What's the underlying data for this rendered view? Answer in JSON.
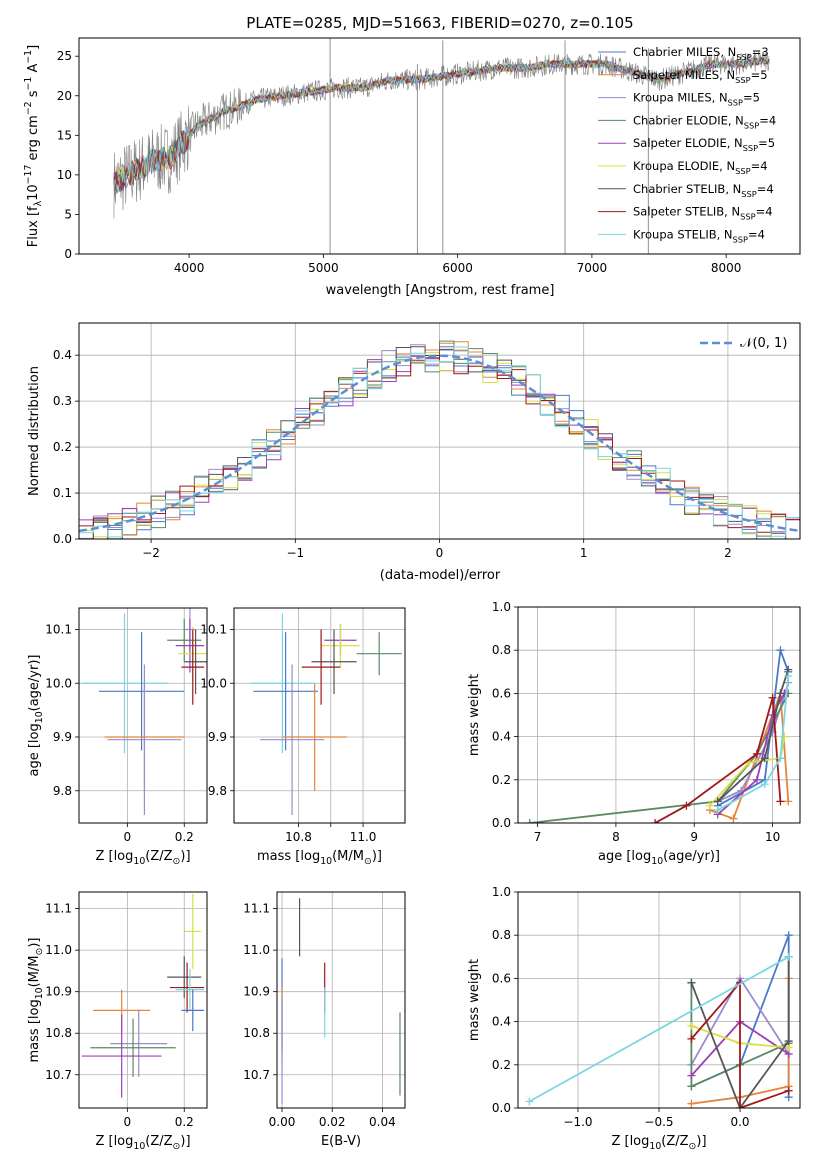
{
  "colors": {
    "series": [
      "#1f77b4",
      "#ff7f0e",
      "#2ca02c",
      "#d62728",
      "#9467bd",
      "#8c564b",
      "#e377c2",
      "#7f7f7f",
      "#bcbd22",
      "#17becf"
    ],
    "fit": [
      "#4a78c9",
      "#e5853a",
      "#9c8ad0",
      "#5a8a64",
      "#9a40b8",
      "#d6e040",
      "#555555",
      "#a01818",
      "#7ad6e0"
    ],
    "gaussian": "#5b8fd4",
    "spectrum": "#808080"
  },
  "chart_data": [
    {
      "type": "line",
      "title": "PLATE=0285, MJD=51663, FIBERID=0270, z=0.105",
      "xlabel": "wavelength [Angstrom, rest frame]",
      "ylabel": "Flux [f",
      "ylabel_sub": "λ",
      "ylabel_mid": "10",
      "ylabel_exp": "−17",
      "ylabel_tail": " erg cm",
      "ylabel_exp2": "−2",
      "ylabel_tail2": " s",
      "ylabel_exp3": "−1",
      "ylabel_tail3": " A",
      "ylabel_exp4": "−1",
      "ylabel_end": "]",
      "xlim": [
        3180,
        8550
      ],
      "ylim": [
        0,
        27.3
      ],
      "xticks": [
        4000,
        5000,
        6000,
        7000,
        8000
      ],
      "yticks": [
        0,
        5,
        10,
        15,
        20,
        25
      ],
      "legend_position": "top-right",
      "legend": [
        {
          "label": "Chabrier MILES, N",
          "sub": "SSP",
          "tail": "=3",
          "color_index": 0
        },
        {
          "label": "Salpeter MILES, N",
          "sub": "SSP",
          "tail": "=5",
          "color_index": 1
        },
        {
          "label": "Kroupa MILES, N",
          "sub": "SSP",
          "tail": "=5",
          "color_index": 8
        },
        {
          "label": "Chabrier ELODIE, N",
          "sub": "SSP",
          "tail": "=4",
          "color_index": 3
        },
        {
          "label": "Salpeter ELODIE, N",
          "sub": "SSP",
          "tail": "=5",
          "color_index": 4
        },
        {
          "label": "Kroupa ELODIE, N",
          "sub": "SSP",
          "tail": "=4",
          "color_index": 5
        },
        {
          "label": "Chabrier STELIB, N",
          "sub": "SSP",
          "tail": "=4",
          "color_index": 6
        },
        {
          "label": "Salpeter STELIB, N",
          "sub": "SSP",
          "tail": "=4",
          "color_index": 7
        },
        {
          "label": "Kroupa STELIB, N",
          "sub": "SSP",
          "tail": "=4",
          "color_index": 8
        }
      ],
      "spectrum_shape": {
        "x": [
          3450,
          3550,
          3650,
          3750,
          3850,
          3950,
          4050,
          4150,
          4250,
          4350,
          4500,
          4700,
          4900,
          5100,
          5300,
          5500,
          5700,
          5900,
          6100,
          6300,
          6500,
          6700,
          6900,
          7100,
          7300,
          7500,
          7700,
          7900,
          8100,
          8300
        ],
        "y": [
          9,
          10,
          11,
          12,
          12,
          14,
          16,
          17,
          18,
          18.5,
          19.5,
          20,
          20.5,
          21,
          21,
          22,
          22,
          22.5,
          23,
          23.5,
          23.5,
          24,
          24,
          24,
          23,
          22,
          23,
          24,
          24,
          24.5
        ]
      }
    },
    {
      "type": "line",
      "xlabel": "(data-model)/error",
      "ylabel": "Normed distribution",
      "xlim": [
        -2.5,
        2.5
      ],
      "ylim": [
        0,
        0.47
      ],
      "xticks": [
        -2,
        -1,
        0,
        1,
        2
      ],
      "yticks": [
        0.0,
        0.1,
        0.2,
        0.3,
        0.4
      ],
      "legend_position": "top-right",
      "legend": [
        {
          "label": "𝒩(0, 1)"
        }
      ],
      "bin_width": 0.1,
      "series_count": 9
    },
    {
      "type": "scatter",
      "xlabel": "Z [log",
      "xlabel_sub": "10",
      "xlabel_tail": "(Z/Z",
      "xlabel_sub2": "⊙",
      "xlabel_end": ")]",
      "ylabel": "age  [log",
      "ylabel_sub": "10",
      "ylabel_tail": "(age/yr)]",
      "xlim": [
        -0.17,
        0.28
      ],
      "ylim": [
        9.74,
        10.14
      ],
      "xticks": [
        0.0,
        0.2
      ],
      "yticks": [
        9.8,
        9.9,
        10.0,
        10.1
      ],
      "points": [
        {
          "x": 0.22,
          "y": 10.1,
          "xerr": 0.02,
          "yerr": 0.04
        },
        {
          "x": 0.2,
          "y": 10.08,
          "xerr": 0.06,
          "yerr": 0.04
        },
        {
          "x": 0.22,
          "y": 10.07,
          "xerr": 0.05,
          "yerr": 0.05
        },
        {
          "x": 0.23,
          "y": 10.055,
          "xerr": 0.05,
          "yerr": 0.05
        },
        {
          "x": 0.24,
          "y": 10.04,
          "xerr": 0.04,
          "yerr": 0.06
        },
        {
          "x": 0.23,
          "y": 10.03,
          "xerr": 0.04,
          "yerr": 0.07
        },
        {
          "x": -0.01,
          "y": 10.0,
          "xerr": 0.15,
          "yerr": 0.13
        },
        {
          "x": 0.05,
          "y": 9.985,
          "xerr": 0.15,
          "yerr": 0.11
        },
        {
          "x": 0.06,
          "y": 9.9,
          "xerr": 0.14,
          "yerr": 0.1
        },
        {
          "x": 0.06,
          "y": 9.895,
          "xerr": 0.13,
          "yerr": 0.14
        }
      ]
    },
    {
      "type": "scatter",
      "xlabel": "mass [log",
      "xlabel_sub": "10",
      "xlabel_tail": "(M/M",
      "xlabel_sub2": "⊙",
      "xlabel_end": ")]",
      "xlim": [
        10.6,
        11.13
      ],
      "ylim": [
        9.74,
        10.14
      ],
      "xticks": [
        10.8,
        10.9,
        11.0
      ],
      "xticklabels": [
        "10.8",
        "",
        "11.0"
      ],
      "yticks": [
        9.8,
        9.9,
        10.0,
        10.1
      ],
      "points": [
        {
          "x": 11.05,
          "y": 10.055,
          "xerr": 0.07,
          "yerr": 0.04
        },
        {
          "x": 10.93,
          "y": 10.08,
          "xerr": 0.05,
          "yerr": 0.03
        },
        {
          "x": 10.93,
          "y": 10.07,
          "xerr": 0.06,
          "yerr": 0.04
        },
        {
          "x": 10.91,
          "y": 10.04,
          "xerr": 0.07,
          "yerr": 0.06
        },
        {
          "x": 10.87,
          "y": 10.03,
          "xerr": 0.06,
          "yerr": 0.07
        },
        {
          "x": 10.75,
          "y": 10.0,
          "xerr": 0.1,
          "yerr": 0.13
        },
        {
          "x": 10.76,
          "y": 9.985,
          "xerr": 0.1,
          "yerr": 0.11
        },
        {
          "x": 10.85,
          "y": 9.9,
          "xerr": 0.1,
          "yerr": 0.1
        },
        {
          "x": 10.78,
          "y": 9.895,
          "xerr": 0.1,
          "yerr": 0.14
        }
      ]
    },
    {
      "type": "line",
      "xlabel": "age  [log",
      "xlabel_sub": "10",
      "xlabel_tail": "(age/yr)]",
      "ylabel": "mass weight",
      "xlim": [
        6.75,
        10.35
      ],
      "ylim": [
        0,
        1.0
      ],
      "xticks": [
        7,
        8,
        9,
        10
      ],
      "yticks": [
        0.0,
        0.2,
        0.4,
        0.6,
        0.8,
        1.0
      ],
      "series": [
        {
          "x": [
            9.3,
            9.9,
            10.1,
            10.2
          ],
          "y": [
            0.08,
            0.2,
            0.8,
            0.7
          ]
        },
        {
          "x": [
            9.2,
            9.5,
            10.1,
            10.2
          ],
          "y": [
            0.06,
            0.02,
            0.6,
            0.1
          ]
        },
        {
          "x": [
            9.3,
            9.6,
            10.0,
            10.2
          ],
          "y": [
            0.1,
            0.15,
            0.42,
            0.65
          ]
        },
        {
          "x": [
            6.9,
            9.3,
            9.8,
            10.2
          ],
          "y": [
            0.0,
            0.1,
            0.32,
            0.6
          ]
        },
        {
          "x": [
            9.3,
            9.8,
            10.0,
            10.15
          ],
          "y": [
            0.04,
            0.2,
            0.5,
            0.6
          ]
        },
        {
          "x": [
            9.2,
            9.7,
            10.1,
            10.15
          ],
          "y": [
            0.08,
            0.28,
            0.3,
            0.4
          ]
        },
        {
          "x": [
            9.3,
            9.9,
            10.1,
            10.2
          ],
          "y": [
            0.1,
            0.3,
            0.6,
            0.71
          ]
        },
        {
          "x": [
            8.5,
            8.9,
            9.8,
            10.0,
            10.1
          ],
          "y": [
            0.0,
            0.08,
            0.32,
            0.58,
            0.1
          ]
        },
        {
          "x": [
            9.3,
            9.9,
            10.1,
            10.2
          ],
          "y": [
            0.06,
            0.18,
            0.3,
            0.68
          ]
        }
      ]
    },
    {
      "type": "scatter",
      "xlabel": "Z [log",
      "xlabel_sub": "10",
      "xlabel_tail": "(Z/Z",
      "xlabel_sub2": "⊙",
      "xlabel_end": ")]",
      "ylabel": "mass [log",
      "ylabel_sub": "10",
      "ylabel_tail": "(M/M",
      "ylabel_sub2": "⊙",
      "ylabel_end": ")]",
      "xlim": [
        -0.17,
        0.28
      ],
      "ylim": [
        10.62,
        11.14
      ],
      "xticks": [
        0.0,
        0.2
      ],
      "yticks": [
        10.7,
        10.8,
        10.9,
        11.0,
        11.1
      ],
      "points": [
        {
          "x": 0.23,
          "y": 11.045,
          "xerr": 0.03,
          "yerr": 0.09
        },
        {
          "x": 0.2,
          "y": 10.935,
          "xerr": 0.06,
          "yerr": 0.05
        },
        {
          "x": 0.21,
          "y": 10.91,
          "xerr": 0.06,
          "yerr": 0.06
        },
        {
          "x": 0.22,
          "y": 10.905,
          "xerr": 0.05,
          "yerr": 0.05
        },
        {
          "x": 0.23,
          "y": 10.855,
          "xerr": 0.04,
          "yerr": 0.05
        },
        {
          "x": -0.02,
          "y": 10.855,
          "xerr": 0.1,
          "yerr": 0.05
        },
        {
          "x": 0.04,
          "y": 10.775,
          "xerr": 0.1,
          "yerr": 0.08
        },
        {
          "x": 0.02,
          "y": 10.765,
          "xerr": 0.15,
          "yerr": 0.07
        },
        {
          "x": -0.02,
          "y": 10.745,
          "xerr": 0.14,
          "yerr": 0.1
        }
      ]
    },
    {
      "type": "scatter",
      "xlabel": "E(B-V)",
      "xlim": [
        -0.002,
        0.049
      ],
      "ylim": [
        10.62,
        11.14
      ],
      "xticks": [
        0.0,
        0.02,
        0.04
      ],
      "xticklabels": [
        "0.00",
        "0.02",
        "0.04"
      ],
      "yticks": [
        10.7,
        10.8,
        10.9,
        11.0,
        11.1
      ],
      "points": [
        {
          "x": 0.007,
          "y": 11.055,
          "xerr": 0,
          "yerr": 0.07
        },
        {
          "x": 0.017,
          "y": 10.91,
          "xerr": 0,
          "yerr": 0.06
        },
        {
          "x": 0.017,
          "y": 10.85,
          "xerr": 0,
          "yerr": 0.06
        },
        {
          "x": 0.0,
          "y": 10.87,
          "xerr": 0,
          "yerr": 0.11
        },
        {
          "x": 0.0,
          "y": 10.82,
          "xerr": 0,
          "yerr": 0.09
        },
        {
          "x": 0.0,
          "y": 10.76,
          "xerr": 0,
          "yerr": 0.13
        },
        {
          "x": 0.047,
          "y": 10.75,
          "xerr": 0,
          "yerr": 0.1
        }
      ]
    },
    {
      "type": "line",
      "xlabel": "Z [log",
      "xlabel_sub": "10",
      "xlabel_tail": "(Z/Z",
      "xlabel_sub2": "⊙",
      "xlabel_end": ")]",
      "ylabel": "mass weight",
      "xlim": [
        -1.37,
        0.37
      ],
      "ylim": [
        0,
        1.0
      ],
      "xticks": [
        -1.0,
        -0.5,
        0.0
      ],
      "xticklabels": [
        "−1.0",
        "−0.5",
        "0.0"
      ],
      "yticks": [
        0.0,
        0.2,
        0.4,
        0.6,
        0.8,
        1.0
      ],
      "series": [
        {
          "x": [
            -0.3,
            0.0,
            0.3,
            0.3
          ],
          "y": [
            0.1,
            0.2,
            0.8,
            0.05
          ]
        },
        {
          "x": [
            -0.3,
            0.0,
            0.3,
            0.3
          ],
          "y": [
            0.02,
            0.05,
            0.1,
            0.6
          ]
        },
        {
          "x": [
            -0.3,
            0.0,
            0.3
          ],
          "y": [
            0.2,
            0.6,
            0.25
          ]
        },
        {
          "x": [
            -0.3,
            -0.3,
            0.0,
            0.3
          ],
          "y": [
            0.58,
            0.1,
            0.2,
            0.3
          ]
        },
        {
          "x": [
            -0.3,
            0.0,
            0.3
          ],
          "y": [
            0.15,
            0.4,
            0.25
          ]
        },
        {
          "x": [
            -0.3,
            0.0,
            0.3
          ],
          "y": [
            0.38,
            0.3,
            0.28
          ]
        },
        {
          "x": [
            -0.3,
            0.0,
            0.3,
            0.3
          ],
          "y": [
            0.58,
            0.0,
            0.31,
            0.7
          ]
        },
        {
          "x": [
            -0.3,
            0.0,
            0.0,
            0.3
          ],
          "y": [
            0.32,
            0.58,
            0.0,
            0.08
          ]
        },
        {
          "x": [
            -1.3,
            0.3
          ],
          "y": [
            0.03,
            0.7
          ]
        }
      ]
    }
  ]
}
